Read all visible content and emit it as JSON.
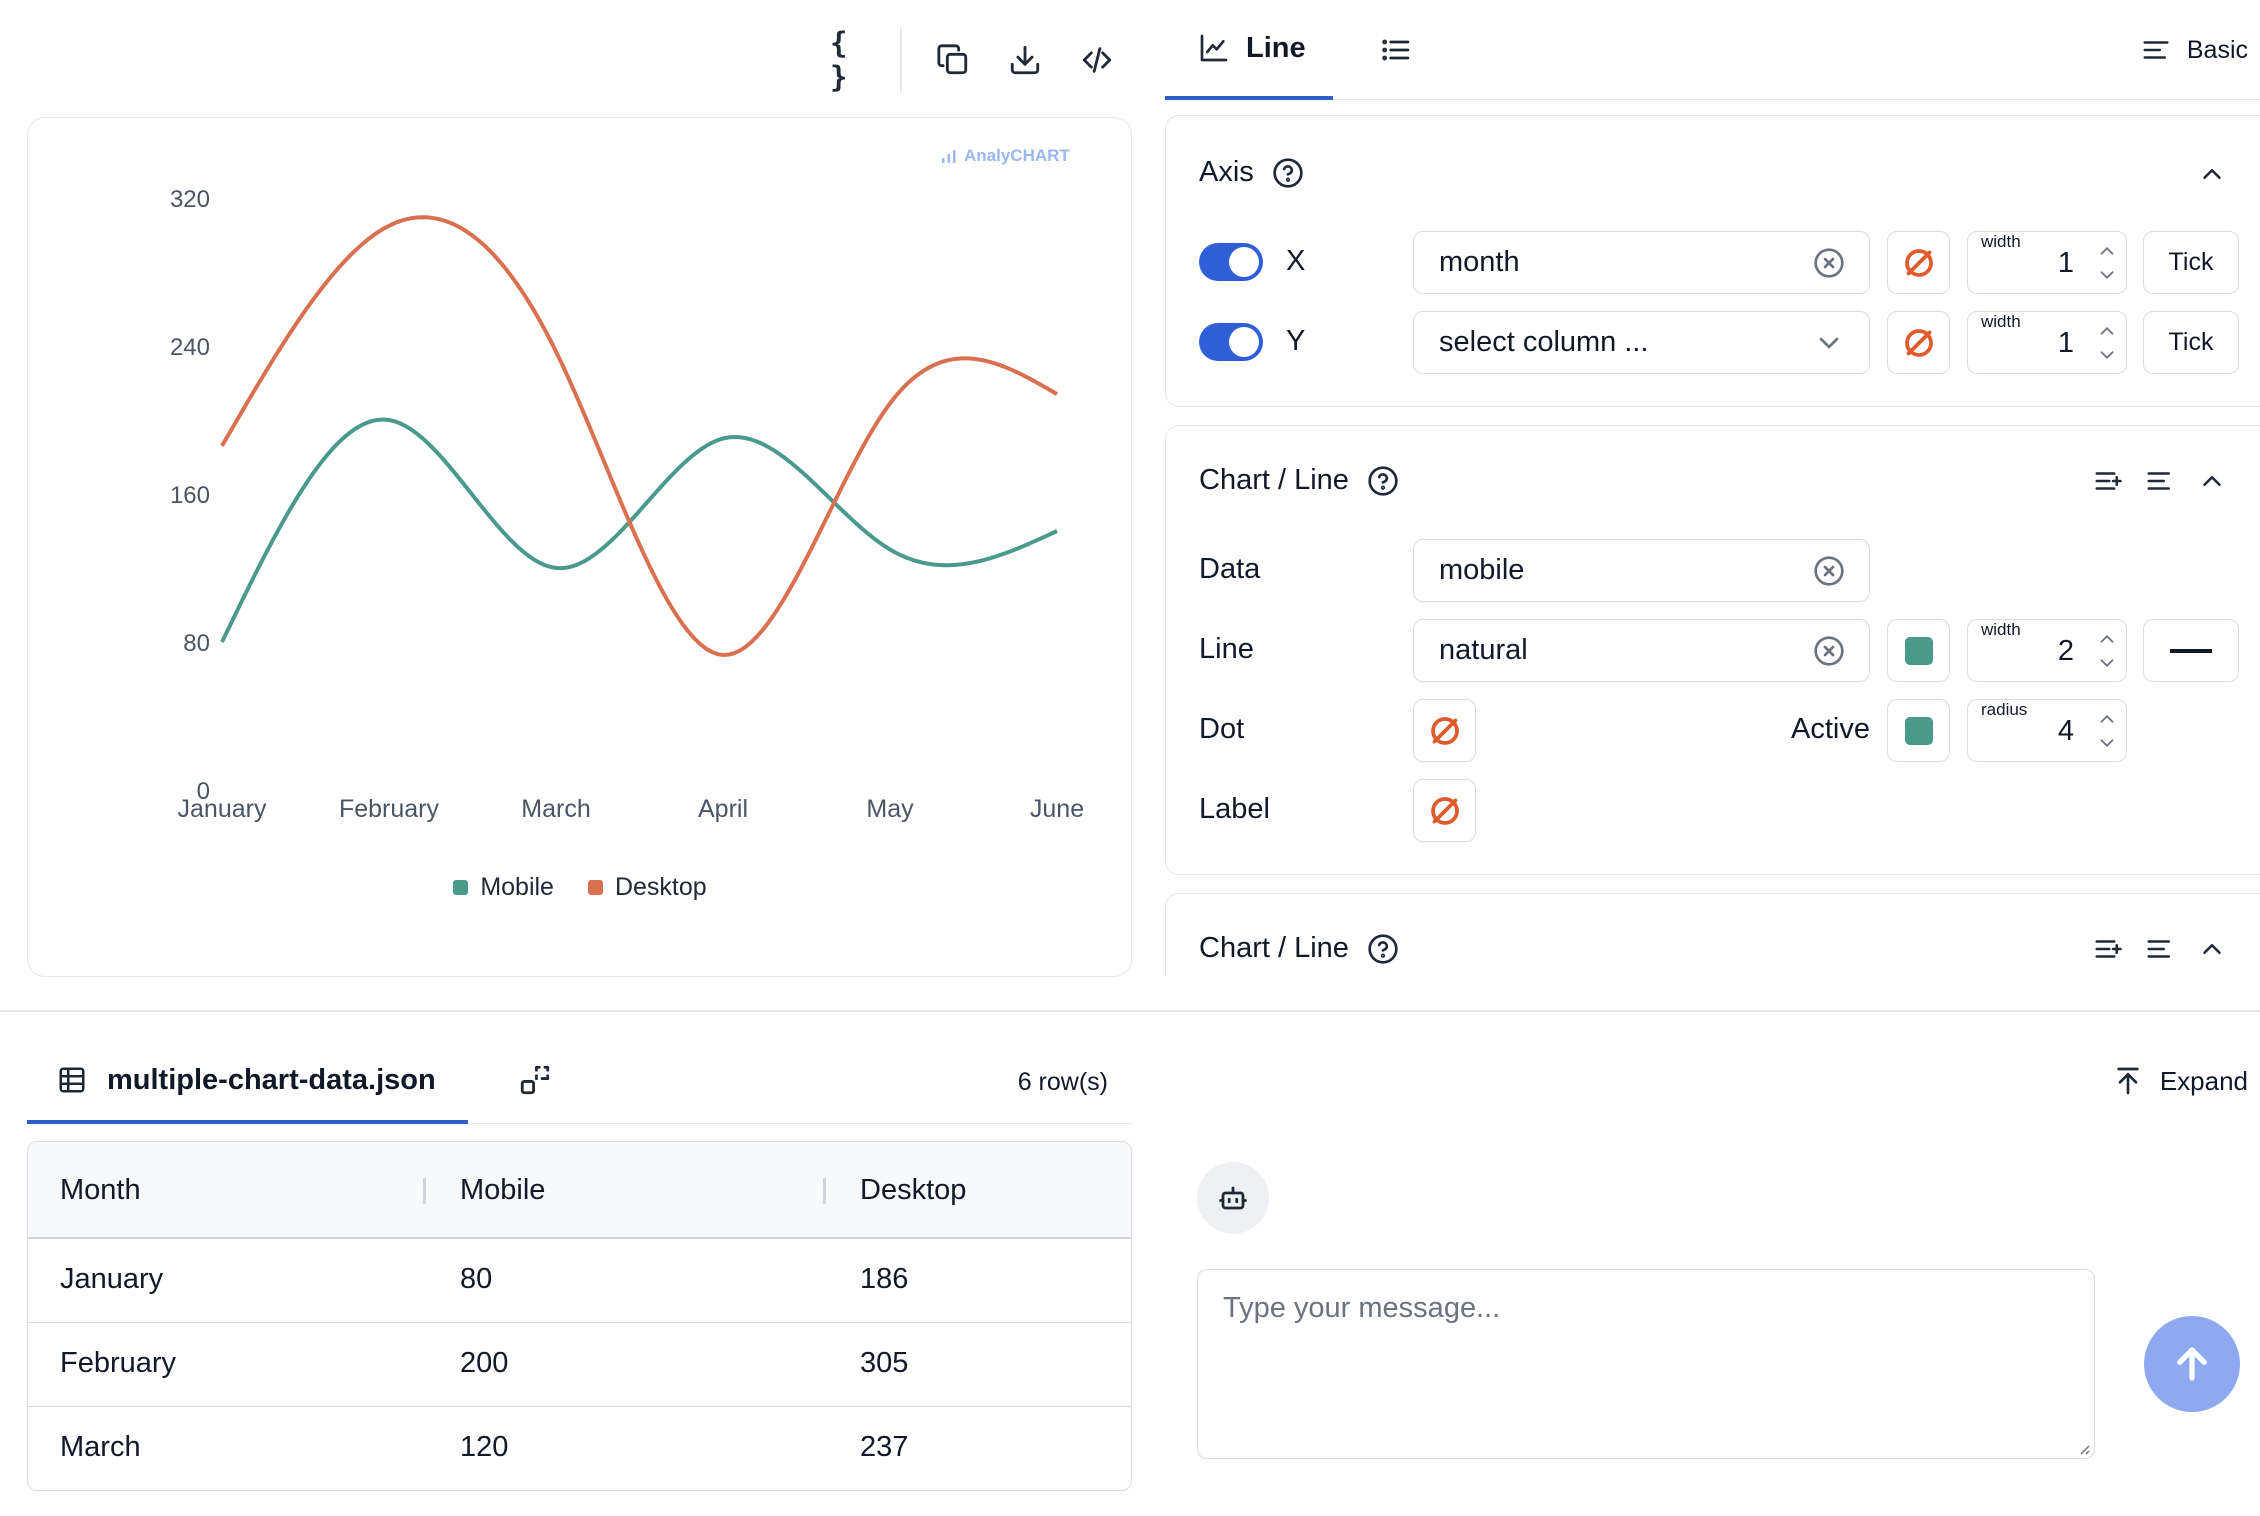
{
  "toolbar": {
    "icons": [
      "braces-icon",
      "copy-icon",
      "download-icon",
      "code-icon"
    ]
  },
  "chart": {
    "watermark": "AnalyCHART",
    "colors": {
      "mobile": "#4a9a8c",
      "desktop": "#d9704f"
    }
  },
  "chart_data": {
    "type": "line",
    "curve": "natural",
    "categories": [
      "January",
      "February",
      "March",
      "April",
      "May",
      "June"
    ],
    "series": [
      {
        "name": "Mobile",
        "values": [
          80,
          200,
          120,
          190,
          130,
          140
        ],
        "color": "#4a9a8c"
      },
      {
        "name": "Desktop",
        "values": [
          186,
          305,
          237,
          73,
          209,
          214
        ],
        "color": "#d9704f"
      }
    ],
    "yticks": [
      0,
      80,
      160,
      240,
      320
    ],
    "ylim": [
      0,
      320
    ],
    "legend": "bottom",
    "grid": false
  },
  "tabs": {
    "line_label": "Line",
    "basic_label": "Basic"
  },
  "axis_section": {
    "title": "Axis",
    "x": {
      "letter": "X",
      "value": "month",
      "width_label": "width",
      "width_value": "1",
      "tick_label": "Tick"
    },
    "y": {
      "letter": "Y",
      "value": "select column ...",
      "width_label": "width",
      "width_value": "1",
      "tick_label": "Tick"
    }
  },
  "line_section": {
    "title": "Chart / Line",
    "data_label": "Data",
    "data_value": "mobile",
    "line_label": "Line",
    "line_value": "natural",
    "line_color": "#4a9a8c",
    "line_width_label": "width",
    "line_width_value": "2",
    "dot_label": "Dot",
    "active_label": "Active",
    "active_color": "#4a9a8c",
    "radius_label": "radius",
    "radius_value": "4",
    "label_label": "Label"
  },
  "line_section_2": {
    "title": "Chart / Line"
  },
  "data_panel": {
    "file_name": "multiple-chart-data.json",
    "row_count": "6 row(s)",
    "expand_label": "Expand",
    "columns": [
      "Month",
      "Mobile",
      "Desktop"
    ],
    "rows": [
      [
        "January",
        "80",
        "186"
      ],
      [
        "February",
        "200",
        "305"
      ],
      [
        "March",
        "120",
        "237"
      ]
    ]
  },
  "chat": {
    "placeholder": "Type your message..."
  }
}
